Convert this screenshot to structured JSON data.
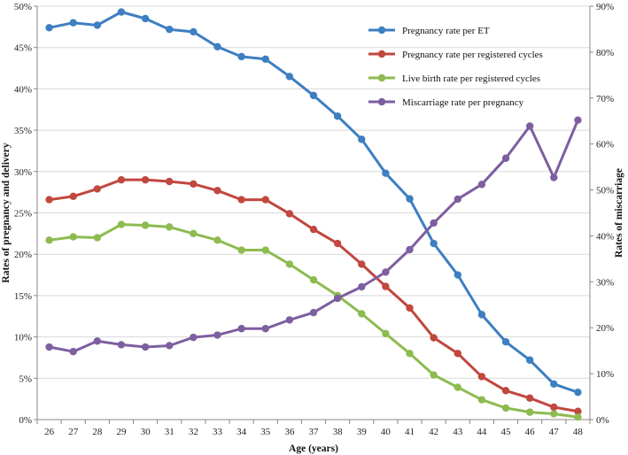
{
  "chart_data": {
    "type": "line",
    "categories": [
      26,
      27,
      28,
      29,
      30,
      31,
      32,
      33,
      34,
      35,
      36,
      37,
      38,
      39,
      40,
      41,
      42,
      43,
      44,
      45,
      46,
      47,
      48
    ],
    "xlabel": "Age (years)",
    "ylabel_left": "Rates of pregnancy and delivery",
    "ylabel_right": "Rates of miscarriage",
    "ylim_left": [
      0,
      50
    ],
    "ylim_right": [
      0,
      90
    ],
    "yticks_left": [
      "0%",
      "5%",
      "10%",
      "15%",
      "20%",
      "25%",
      "30%",
      "35%",
      "40%",
      "45%",
      "50%"
    ],
    "yticks_right": [
      "0%",
      "10%",
      "20%",
      "30%",
      "40%",
      "50%",
      "60%",
      "70%",
      "80%",
      "90%"
    ],
    "legend_position": "top-right",
    "series": [
      {
        "name": "Pregnancy rate per ET",
        "axis": "left",
        "color": "#3d7fc1",
        "values": [
          47.4,
          48.0,
          47.7,
          49.3,
          48.5,
          47.2,
          46.9,
          45.1,
          43.9,
          43.6,
          41.5,
          39.2,
          36.7,
          33.9,
          29.8,
          26.7,
          21.3,
          17.5,
          12.7,
          9.4,
          7.2,
          4.3,
          3.3
        ]
      },
      {
        "name": "Pregnancy rate per registered cycles",
        "axis": "left",
        "color": "#c1473f",
        "values": [
          26.6,
          27.0,
          27.9,
          29.0,
          29.0,
          28.8,
          28.5,
          27.7,
          26.6,
          26.6,
          24.9,
          23.0,
          21.3,
          18.8,
          16.1,
          13.5,
          9.9,
          8.0,
          5.2,
          3.5,
          2.6,
          1.5,
          1.0
        ]
      },
      {
        "name": "Live birth rate per registered cycles",
        "axis": "left",
        "color": "#8dbb4f",
        "values": [
          21.7,
          22.1,
          22.0,
          23.6,
          23.5,
          23.3,
          22.5,
          21.7,
          20.5,
          20.5,
          18.8,
          16.9,
          15.0,
          12.8,
          10.4,
          8.0,
          5.4,
          3.9,
          2.4,
          1.4,
          0.9,
          0.7,
          0.3
        ]
      },
      {
        "name": "Miscarriage rate per pregnancy",
        "axis": "right",
        "color": "#7d5fa0",
        "values": [
          15.8,
          14.8,
          17.1,
          16.3,
          15.8,
          16.1,
          17.9,
          18.4,
          19.8,
          19.8,
          21.7,
          23.3,
          26.4,
          28.9,
          32.1,
          37.0,
          42.8,
          48.0,
          51.2,
          56.9,
          63.9,
          52.7,
          65.2
        ]
      }
    ]
  }
}
